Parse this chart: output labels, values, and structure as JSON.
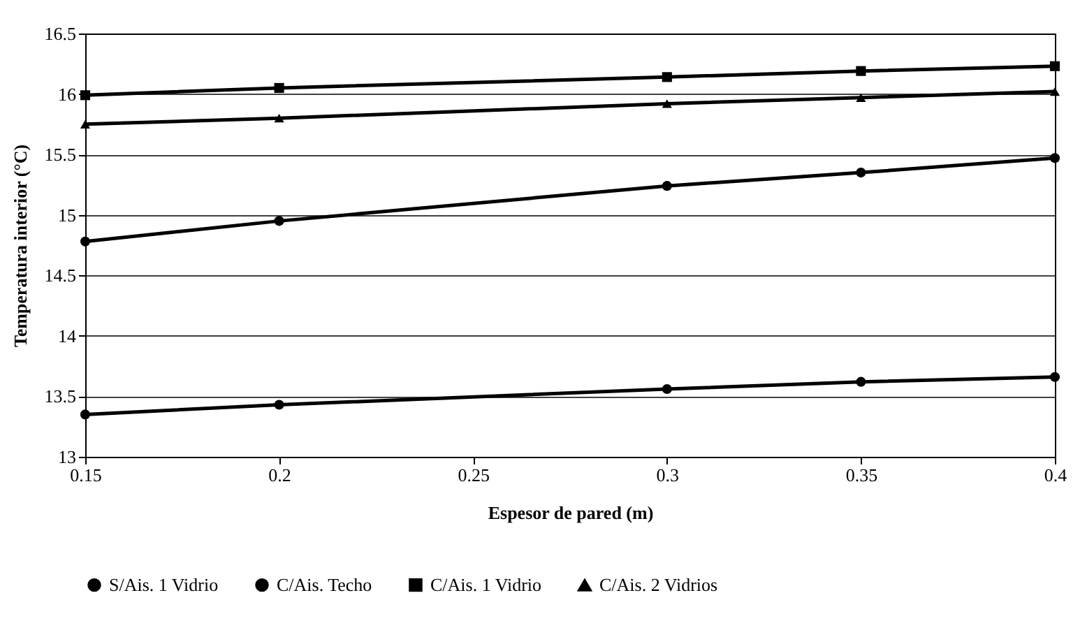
{
  "chart_data": {
    "type": "line",
    "xlabel": "Espesor de pared (m)",
    "ylabel": "Temperatura interior (°C)",
    "x": [
      0.15,
      0.2,
      0.3,
      0.35,
      0.4
    ],
    "series": [
      {
        "name": "S/Ais. 1 Vidrio",
        "color": "#000000",
        "marker": "circle",
        "values": [
          13.35,
          13.43,
          13.56,
          13.62,
          13.66
        ]
      },
      {
        "name": "C/Ais. Techo",
        "color": "#000000",
        "marker": "circle",
        "values": [
          14.78,
          14.95,
          15.24,
          15.35,
          15.47
        ]
      },
      {
        "name": "C/Ais. 1 Vidrio",
        "color": "#000000",
        "marker": "square",
        "values": [
          15.99,
          16.05,
          16.14,
          16.19,
          16.23
        ]
      },
      {
        "name": "C/Ais. 2 Vidrios",
        "color": "#000000",
        "marker": "triangle",
        "values": [
          15.75,
          15.8,
          15.92,
          15.97,
          16.02
        ]
      }
    ],
    "xlim": [
      0.15,
      0.4
    ],
    "xticks": [
      0.15,
      0.2,
      0.25,
      0.3,
      0.35,
      0.4
    ],
    "ylim": [
      13,
      16.5
    ],
    "yticks": [
      13,
      13.5,
      14,
      14.5,
      15,
      15.5,
      16,
      16.5
    ],
    "grid": "y",
    "legend": "bottom",
    "line_style": "solid"
  }
}
